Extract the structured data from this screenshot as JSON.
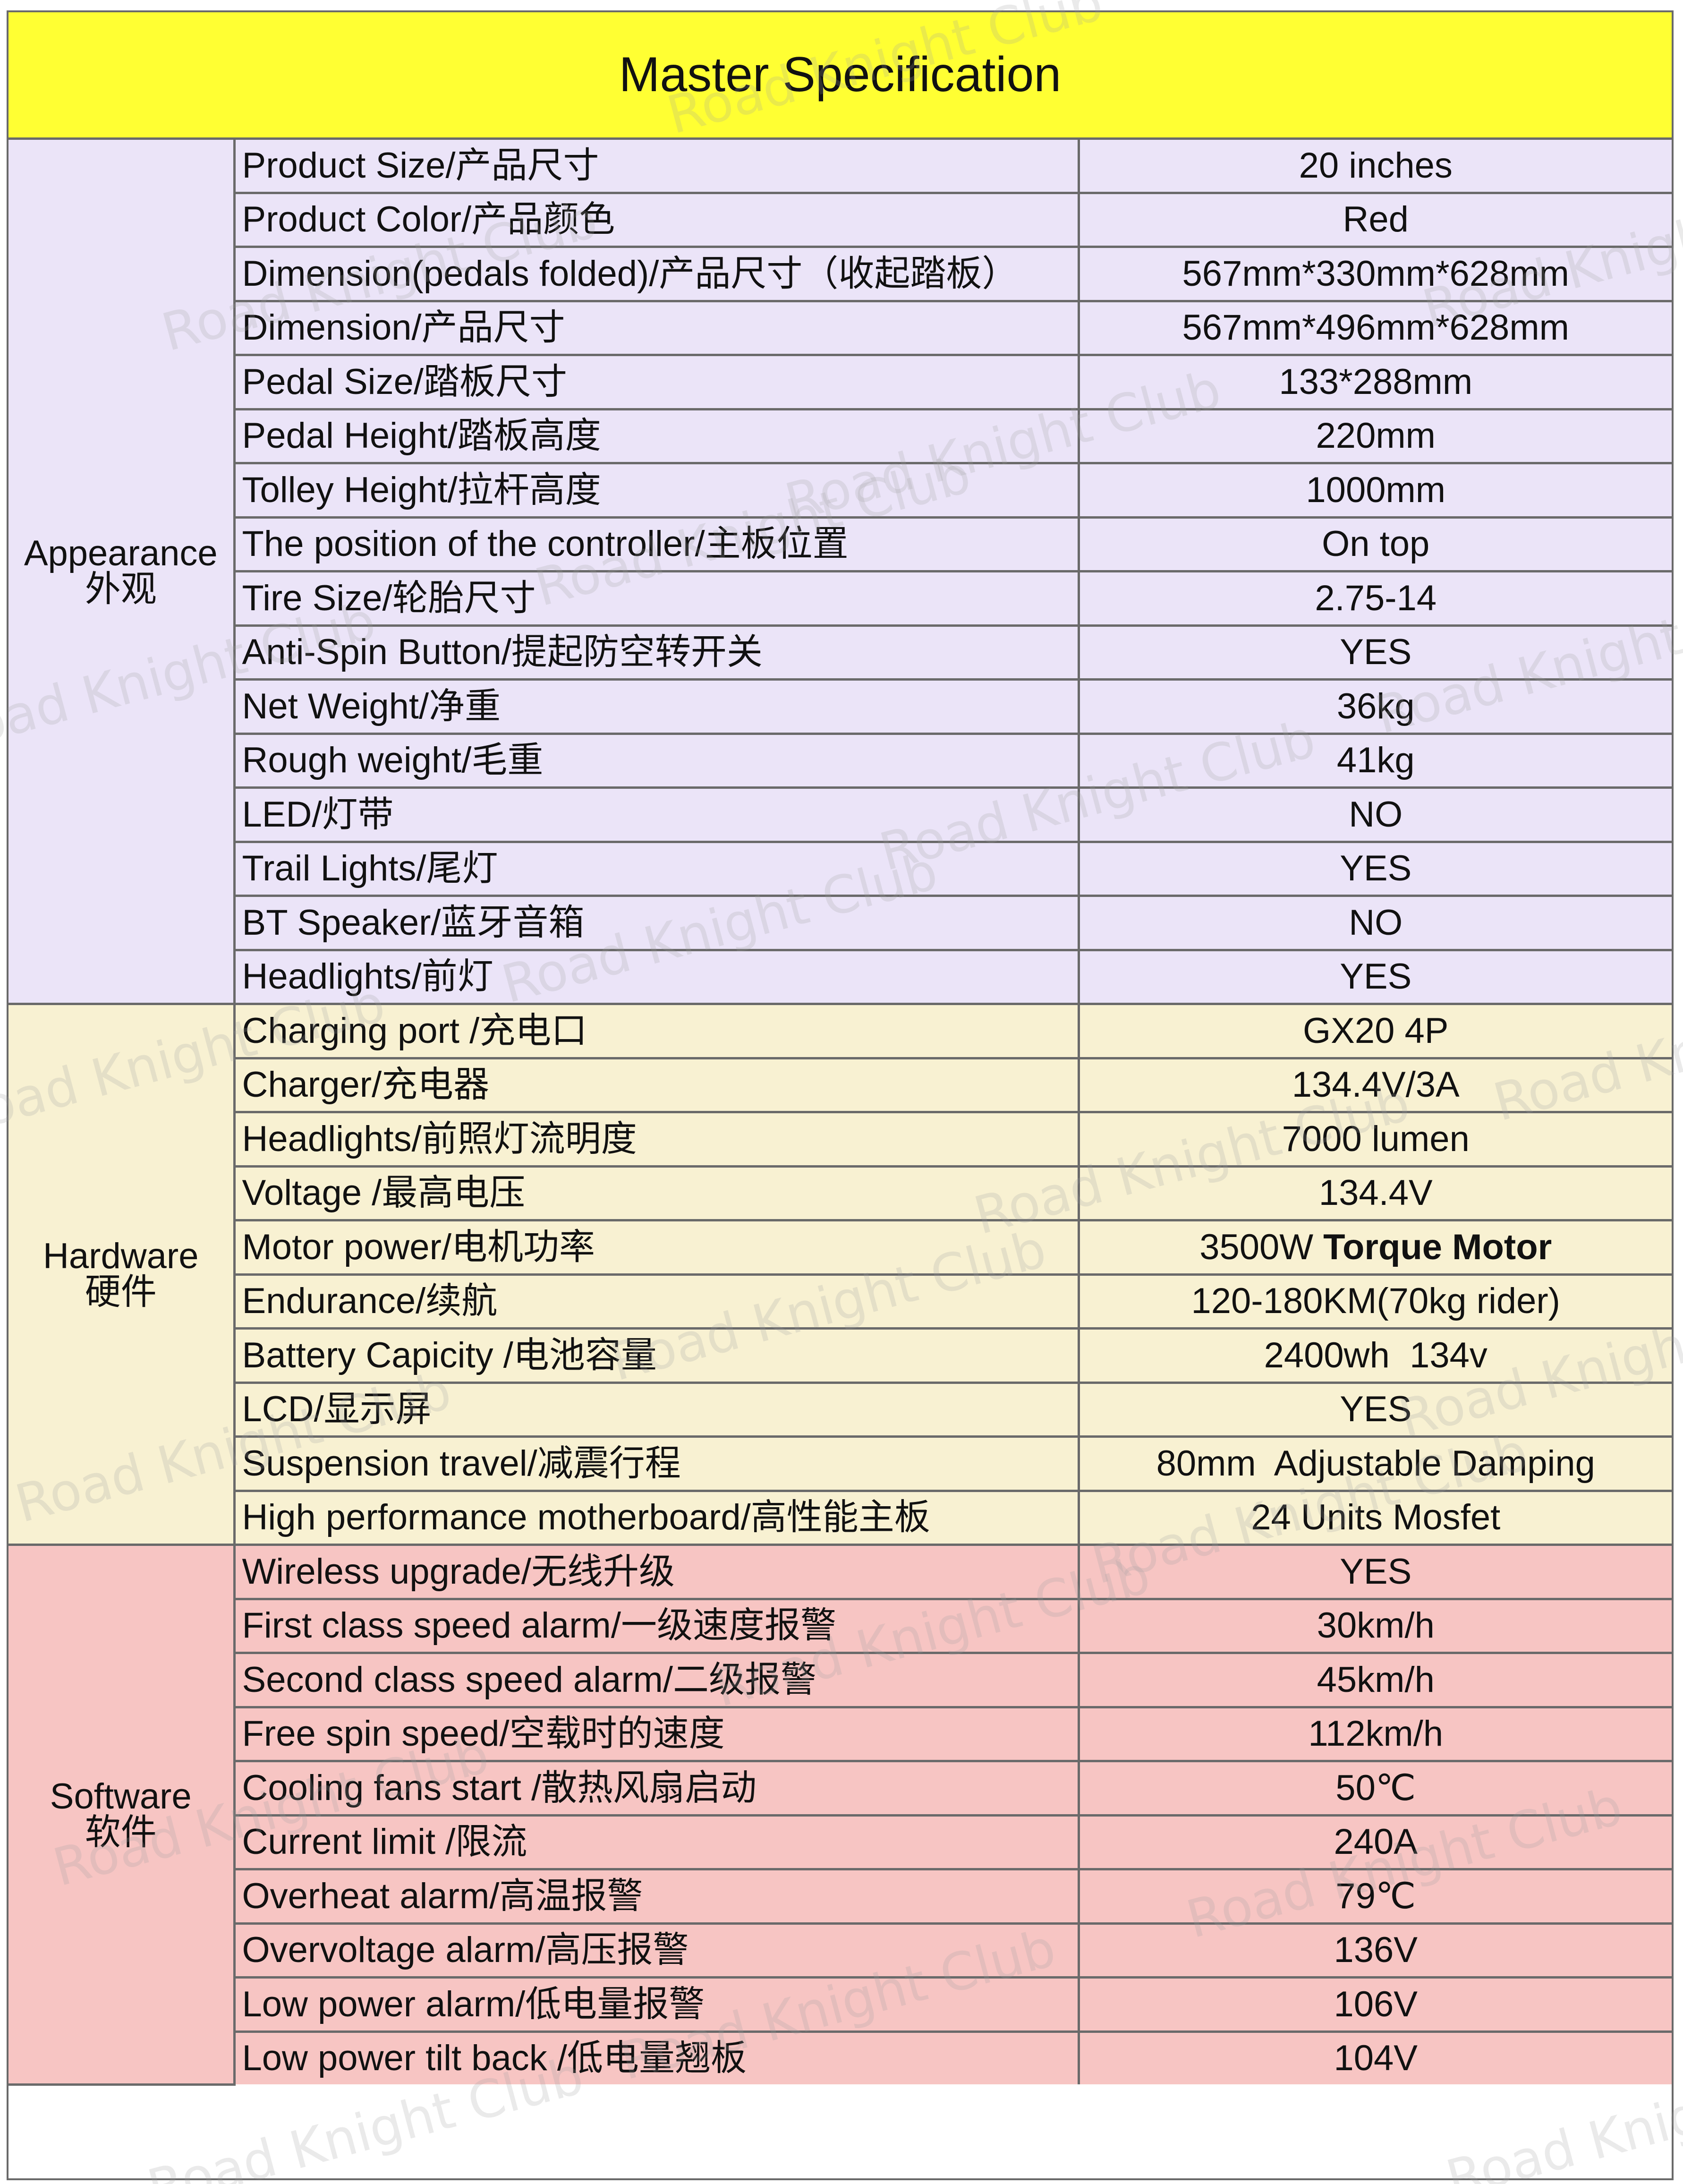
{
  "title": "Master Specification",
  "watermark": "Road Knight Club",
  "colors": {
    "title_bg": "#ffff33",
    "appearance_bg": "#ebe4f8",
    "hardware_bg": "#f8f1d2",
    "software_bg": "#f7c5c3",
    "border": "#6a6a6a"
  },
  "sections": {
    "appearance": {
      "en": "Appearance",
      "zh": "外观",
      "rows": [
        {
          "label": "Product Size/产品尺寸",
          "value": "20 inches"
        },
        {
          "label": "Product Color/产品颜色",
          "value": "Red"
        },
        {
          "label": "Dimension(pedals folded)/产品尺寸（收起踏板）",
          "value": "567mm*330mm*628mm"
        },
        {
          "label": "Dimension/产品尺寸",
          "value": "567mm*496mm*628mm"
        },
        {
          "label": "Pedal Size/踏板尺寸",
          "value": "133*288mm"
        },
        {
          "label": "Pedal Height/踏板高度",
          "value": "220mm"
        },
        {
          "label": "Tolley Height/拉杆高度",
          "value": "1000mm"
        },
        {
          "label": "The position of the controller/主板位置",
          "value": "On top"
        },
        {
          "label": "Tire Size/轮胎尺寸",
          "value": "2.75-14"
        },
        {
          "label": "Anti-Spin Button/提起防空转开关",
          "value": "YES"
        },
        {
          "label": "Net Weight/净重",
          "value": "36kg"
        },
        {
          "label": "Rough weight/毛重",
          "value": "41kg"
        },
        {
          "label": "LED/灯带",
          "value": "NO"
        },
        {
          "label": "Trail Lights/尾灯",
          "value": "YES"
        },
        {
          "label": "BT Speaker/蓝牙音箱",
          "value": "NO"
        },
        {
          "label": "Headlights/前灯",
          "value": "YES"
        }
      ]
    },
    "hardware": {
      "en": "Hardware",
      "zh": "硬件",
      "rows": [
        {
          "label": "Charging port /充电口",
          "value": "GX20 4P"
        },
        {
          "label": "Charger/充电器",
          "value": "134.4V/3A"
        },
        {
          "label": "Headlights/前照灯流明度",
          "value": "7000 lumen"
        },
        {
          "label": "Voltage /最高电压",
          "value": "134.4V"
        },
        {
          "label": "Motor power/电机功率",
          "value": "3500W ",
          "value_bold": "Torque Motor"
        },
        {
          "label": "Endurance/续航",
          "value": "120-180KM(70kg rider)"
        },
        {
          "label": "Battery Capicity /电池容量",
          "value": "2400wh  134v"
        },
        {
          "label": "LCD/显示屏",
          "value": "YES"
        },
        {
          "label": "Suspension travel/减震行程",
          "value": "80mm  Adjustable Damping"
        },
        {
          "label": "High performance motherboard/高性能主板",
          "value": "24 Units Mosfet"
        }
      ]
    },
    "software": {
      "en": "Software",
      "zh": "软件",
      "rows": [
        {
          "label": "Wireless upgrade/无线升级",
          "value": "YES"
        },
        {
          "label": "First class speed alarm/一级速度报警",
          "value": "30km/h"
        },
        {
          "label": "Second class speed alarm/二级报警",
          "value": "45km/h"
        },
        {
          "label": "Free spin speed/空载时的速度",
          "value": "112km/h"
        },
        {
          "label": "Cooling fans start  /散热风扇启动",
          "value": "50℃"
        },
        {
          "label": "Current limit /限流",
          "value": "240A"
        },
        {
          "label": "Overheat alarm/高温报警",
          "value": "79℃"
        },
        {
          "label": "Overvoltage alarm/高压报警",
          "value": "136V"
        },
        {
          "label": "Low power alarm/低电量报警",
          "value": "106V"
        },
        {
          "label": "Low power tilt back /低电量翘板",
          "value": "104V"
        }
      ]
    }
  }
}
